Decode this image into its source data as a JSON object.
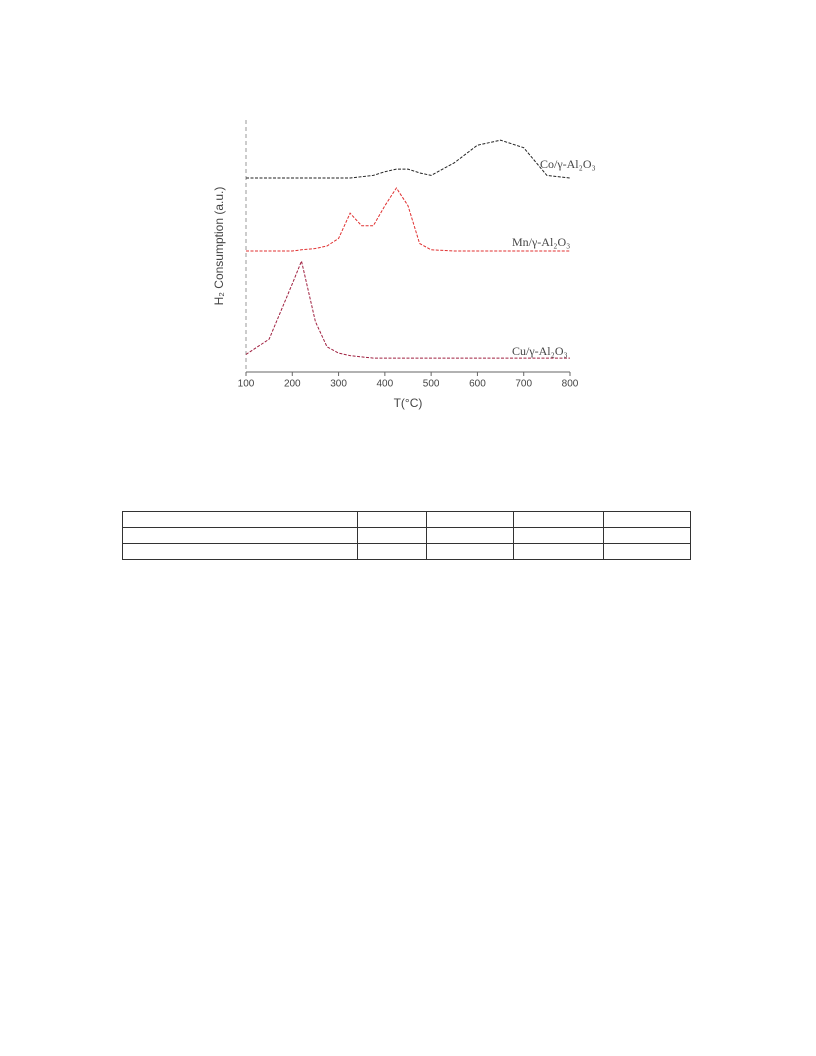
{
  "chart_data": {
    "type": "line",
    "x_label": "T(°C)",
    "y_label": "H₂ Consumption (a.u.)",
    "x": [
      100,
      150,
      200,
      220,
      250,
      275,
      300,
      325,
      350,
      375,
      400,
      425,
      450,
      475,
      500,
      550,
      600,
      650,
      700,
      750,
      800
    ],
    "series": [
      {
        "name": "Co/γ-Al₂O₃",
        "color": "#222222",
        "values": [
          77,
          77,
          77,
          77,
          77,
          77,
          77,
          77,
          77.5,
          78,
          79.5,
          80.5,
          80.5,
          79,
          78,
          83,
          90,
          92,
          89,
          78,
          77
        ]
      },
      {
        "name": "Mn/γ-Al₂O₃",
        "color": "#e03030",
        "values": [
          48,
          48,
          48,
          48.5,
          49,
          50,
          53,
          63,
          58,
          58,
          66,
          73,
          66,
          51,
          48.5,
          48,
          48,
          48,
          48,
          48,
          48
        ]
      },
      {
        "name": "Cu/γ-Al₂O₃",
        "color": "#a02040",
        "values": [
          7,
          13,
          35,
          44,
          20,
          10,
          7.5,
          6.5,
          6,
          5.5,
          5.5,
          5.5,
          5.5,
          5.5,
          5.5,
          5.5,
          5.5,
          5.5,
          5.5,
          5.5,
          5.5
        ]
      }
    ],
    "xlim": [
      100,
      800
    ],
    "xticks": [
      100,
      200,
      300,
      400,
      500,
      600,
      700,
      800
    ],
    "ylim": [
      0,
      100
    ]
  }
}
